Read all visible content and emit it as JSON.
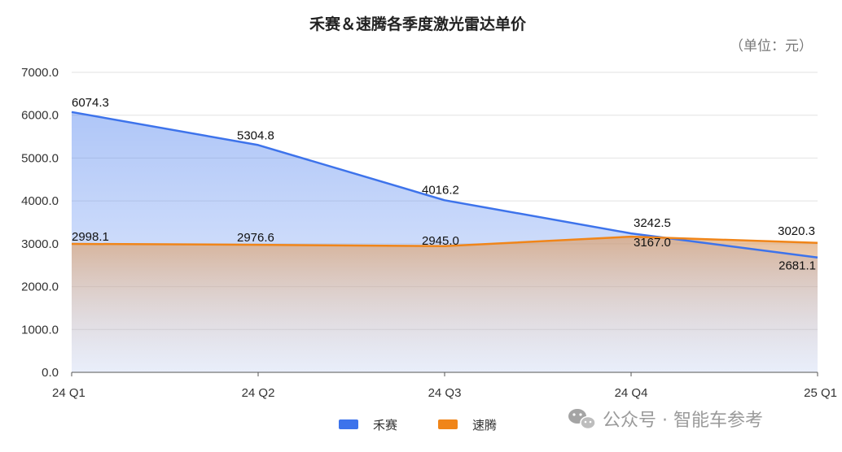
{
  "chart_data": {
    "type": "area",
    "title": "禾赛＆速腾各季度激光雷达单价",
    "unit_label": "（单位：元）",
    "categories": [
      "24 Q1",
      "24 Q2",
      "24 Q3",
      "24 Q4",
      "25 Q1"
    ],
    "ylim": [
      0,
      7000
    ],
    "yticks": [
      "0.0",
      "1000.0",
      "2000.0",
      "3000.0",
      "4000.0",
      "5000.0",
      "6000.0",
      "7000.0"
    ],
    "grid": true,
    "legend_position": "bottom",
    "series": [
      {
        "name": "禾赛",
        "values": [
          6074.3,
          5304.8,
          4016.2,
          3242.5,
          2681.1
        ],
        "labels": [
          "6074.3",
          "5304.8",
          "4016.2",
          "3242.5",
          "2681.1"
        ],
        "color": "#3d73eb"
      },
      {
        "name": "速腾",
        "values": [
          2998.1,
          2976.6,
          2945.0,
          3167.0,
          3020.3
        ],
        "labels": [
          "2998.1",
          "2976.6",
          "2945.0",
          "3167.0",
          "3020.3"
        ],
        "color": "#f08519"
      }
    ]
  },
  "watermark": {
    "text": "公众号 · 智能车参考",
    "icon": "wechat-icon"
  }
}
